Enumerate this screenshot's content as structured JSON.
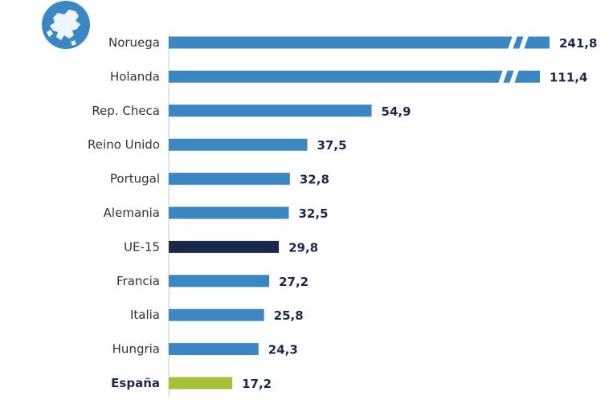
{
  "chart_data": {
    "type": "bar",
    "orientation": "horizontal",
    "title": "",
    "xlabel": "",
    "ylabel": "",
    "axis_break": true,
    "grid": false,
    "categories": [
      "Noruega",
      "Holanda",
      "Rep. Checa",
      "Reino Unido",
      "Portugal",
      "Alemania",
      "UE-15",
      "Francia",
      "Italia",
      "Hungria",
      "España"
    ],
    "values": [
      241.8,
      111.4,
      54.9,
      37.5,
      32.8,
      32.5,
      29.8,
      27.2,
      25.8,
      24.3,
      17.2
    ],
    "value_labels": [
      "241,8",
      "111,4",
      "54,9",
      "37,5",
      "32,8",
      "32,5",
      "29,8",
      "27,2",
      "25,8",
      "24,3",
      "17,2"
    ],
    "broken_bars": [
      "Noruega",
      "Holanda"
    ],
    "highlight": {
      "UE-15": "#1b2a4a",
      "España": "#a4c13a"
    },
    "bold_labels": [
      "España"
    ],
    "default_color": "#3a87c4"
  },
  "icon": {
    "name": "europe-map-icon",
    "color": "#3a87c4"
  }
}
